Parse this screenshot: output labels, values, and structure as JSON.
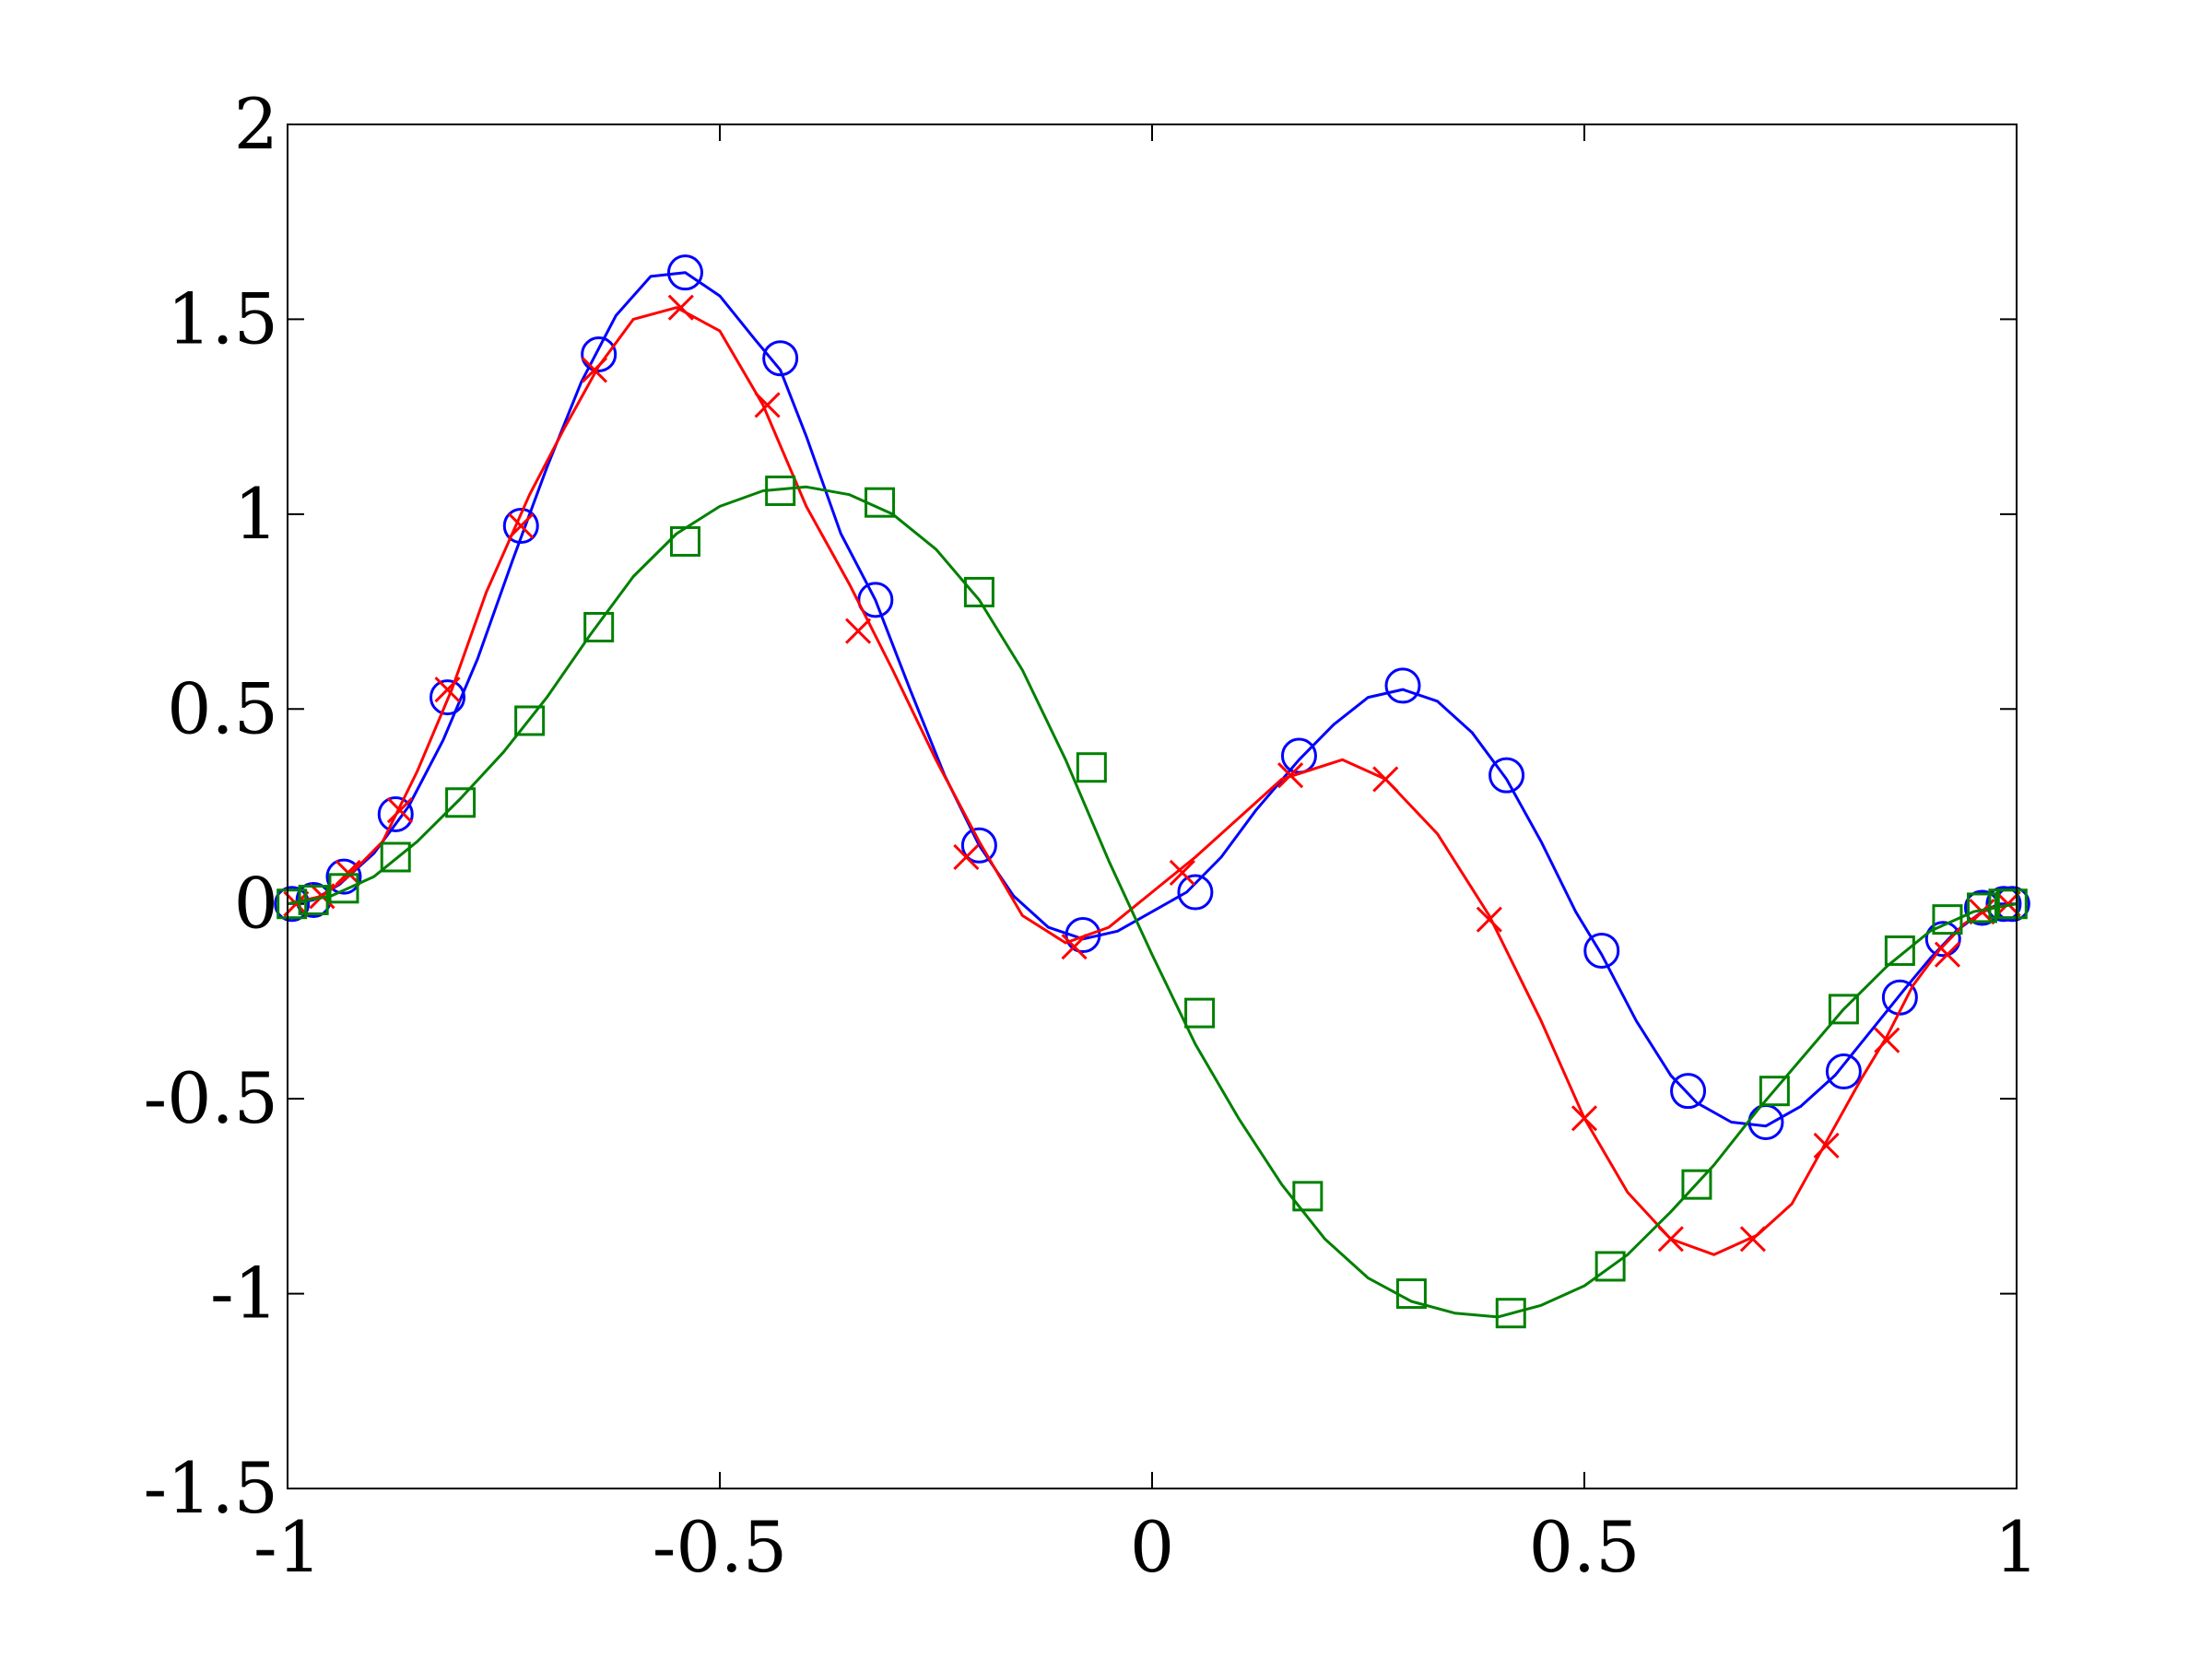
{
  "chart_data": {
    "type": "line",
    "title": "",
    "xlabel": "",
    "ylabel": "",
    "xlim": [
      -1,
      1
    ],
    "ylim": [
      -1.5,
      2
    ],
    "x_ticks": [
      {
        "v": -1,
        "label": "-1"
      },
      {
        "v": -0.5,
        "label": "-0.5"
      },
      {
        "v": 0,
        "label": "0"
      },
      {
        "v": 0.5,
        "label": "0.5"
      },
      {
        "v": 1,
        "label": "1"
      }
    ],
    "y_ticks": [
      {
        "v": -1.5,
        "label": "-1.5"
      },
      {
        "v": -1,
        "label": "-1"
      },
      {
        "v": -0.5,
        "label": "-0.5"
      },
      {
        "v": 0,
        "label": "0"
      },
      {
        "v": 0.5,
        "label": "0.5"
      },
      {
        "v": 1,
        "label": "1"
      },
      {
        "v": 1.5,
        "label": "1.5"
      },
      {
        "v": 2,
        "label": "2"
      }
    ],
    "grid": false,
    "legend": "none",
    "series": [
      {
        "id": "blue",
        "color": "#0000ff",
        "marker": "circle",
        "line": [
          [
            -1,
            0
          ],
          [
            -0.97,
            0.01
          ],
          [
            -0.94,
            0.05
          ],
          [
            -0.9,
            0.13
          ],
          [
            -0.86,
            0.25
          ],
          [
            -0.82,
            0.42
          ],
          [
            -0.78,
            0.63
          ],
          [
            -0.74,
            0.88
          ],
          [
            -0.7,
            1.12
          ],
          [
            -0.66,
            1.34
          ],
          [
            -0.62,
            1.51
          ],
          [
            -0.58,
            1.61
          ],
          [
            -0.54,
            1.62
          ],
          [
            -0.5,
            1.56
          ],
          [
            -0.46,
            1.45
          ],
          [
            -0.43,
            1.37
          ],
          [
            -0.4,
            1.2
          ],
          [
            -0.36,
            0.95
          ],
          [
            -0.32,
            0.78
          ],
          [
            -0.28,
            0.55
          ],
          [
            -0.24,
            0.33
          ],
          [
            -0.2,
            0.15
          ],
          [
            -0.16,
            0.02
          ],
          [
            -0.12,
            -0.06
          ],
          [
            -0.08,
            -0.09
          ],
          [
            -0.04,
            -0.07
          ],
          [
            0,
            -0.02
          ],
          [
            0.04,
            0.03
          ],
          [
            0.08,
            0.12
          ],
          [
            0.12,
            0.24
          ],
          [
            0.17,
            0.37
          ],
          [
            0.21,
            0.46
          ],
          [
            0.25,
            0.53
          ],
          [
            0.29,
            0.55
          ],
          [
            0.33,
            0.52
          ],
          [
            0.37,
            0.44
          ],
          [
            0.41,
            0.32
          ],
          [
            0.45,
            0.16
          ],
          [
            0.49,
            -0.02
          ],
          [
            0.52,
            -0.13
          ],
          [
            0.56,
            -0.3
          ],
          [
            0.6,
            -0.44
          ],
          [
            0.63,
            -0.51
          ],
          [
            0.67,
            -0.56
          ],
          [
            0.71,
            -0.57
          ],
          [
            0.75,
            -0.52
          ],
          [
            0.79,
            -0.44
          ],
          [
            0.83,
            -0.33
          ],
          [
            0.87,
            -0.22
          ],
          [
            0.9,
            -0.14
          ],
          [
            0.93,
            -0.07
          ],
          [
            0.96,
            -0.02
          ],
          [
            0.98,
            0
          ],
          [
            1,
            0
          ]
        ],
        "markers": [
          [
            -0.995,
            0
          ],
          [
            -0.97,
            0.01
          ],
          [
            -0.935,
            0.07
          ],
          [
            -0.875,
            0.23
          ],
          [
            -0.815,
            0.53
          ],
          [
            -0.73,
            0.97
          ],
          [
            -0.64,
            1.41
          ],
          [
            -0.54,
            1.62
          ],
          [
            -0.43,
            1.4
          ],
          [
            -0.32,
            0.78
          ],
          [
            -0.2,
            0.15
          ],
          [
            -0.08,
            -0.08
          ],
          [
            0.05,
            0.03
          ],
          [
            0.17,
            0.38
          ],
          [
            0.29,
            0.56
          ],
          [
            0.41,
            0.33
          ],
          [
            0.52,
            -0.12
          ],
          [
            0.62,
            -0.48
          ],
          [
            0.71,
            -0.56
          ],
          [
            0.8,
            -0.43
          ],
          [
            0.865,
            -0.24
          ],
          [
            0.915,
            -0.09
          ],
          [
            0.96,
            -0.01
          ],
          [
            0.985,
            0
          ],
          [
            0.995,
            0
          ]
        ]
      },
      {
        "id": "red",
        "color": "#ff0000",
        "marker": "x",
        "line": [
          [
            -1,
            0
          ],
          [
            -0.96,
            0.02
          ],
          [
            -0.93,
            0.07
          ],
          [
            -0.89,
            0.16
          ],
          [
            -0.85,
            0.34
          ],
          [
            -0.81,
            0.55
          ],
          [
            -0.77,
            0.8
          ],
          [
            -0.72,
            1.05
          ],
          [
            -0.68,
            1.22
          ],
          [
            -0.64,
            1.38
          ],
          [
            -0.6,
            1.5
          ],
          [
            -0.55,
            1.53
          ],
          [
            -0.5,
            1.47
          ],
          [
            -0.45,
            1.28
          ],
          [
            -0.4,
            1.02
          ],
          [
            -0.35,
            0.82
          ],
          [
            -0.3,
            0.6
          ],
          [
            -0.25,
            0.37
          ],
          [
            -0.2,
            0.16
          ],
          [
            -0.15,
            -0.03
          ],
          [
            -0.1,
            -0.1
          ],
          [
            -0.05,
            -0.06
          ],
          [
            0,
            0.03
          ],
          [
            0.05,
            0.12
          ],
          [
            0.1,
            0.22
          ],
          [
            0.15,
            0.32
          ],
          [
            0.22,
            0.37
          ],
          [
            0.27,
            0.32
          ],
          [
            0.33,
            0.18
          ],
          [
            0.39,
            -0.03
          ],
          [
            0.45,
            -0.3
          ],
          [
            0.5,
            -0.55
          ],
          [
            0.55,
            -0.74
          ],
          [
            0.6,
            -0.86
          ],
          [
            0.65,
            -0.9
          ],
          [
            0.7,
            -0.85
          ],
          [
            0.74,
            -0.77
          ],
          [
            0.78,
            -0.61
          ],
          [
            0.82,
            -0.45
          ],
          [
            0.85,
            -0.34
          ],
          [
            0.88,
            -0.21
          ],
          [
            0.91,
            -0.12
          ],
          [
            0.94,
            -0.05
          ],
          [
            0.97,
            -0.01
          ],
          [
            1,
            0
          ]
        ],
        "markers": [
          [
            -0.99,
            0
          ],
          [
            -0.96,
            0.02
          ],
          [
            -0.93,
            0.08
          ],
          [
            -0.87,
            0.24
          ],
          [
            -0.815,
            0.55
          ],
          [
            -0.73,
            0.97
          ],
          [
            -0.645,
            1.37
          ],
          [
            -0.545,
            1.53
          ],
          [
            -0.445,
            1.28
          ],
          [
            -0.34,
            0.7
          ],
          [
            -0.215,
            0.12
          ],
          [
            -0.09,
            -0.11
          ],
          [
            0.035,
            0.08
          ],
          [
            0.16,
            0.33
          ],
          [
            0.27,
            0.32
          ],
          [
            0.39,
            -0.04
          ],
          [
            0.5,
            -0.55
          ],
          [
            0.6,
            -0.86
          ],
          [
            0.695,
            -0.86
          ],
          [
            0.78,
            -0.62
          ],
          [
            0.85,
            -0.35
          ],
          [
            0.92,
            -0.13
          ],
          [
            0.96,
            -0.02
          ],
          [
            0.99,
            0
          ]
        ]
      },
      {
        "id": "green",
        "color": "#008000",
        "marker": "square",
        "line": [
          [
            -1,
            0
          ],
          [
            -0.95,
            0.02
          ],
          [
            -0.9,
            0.07
          ],
          [
            -0.85,
            0.16
          ],
          [
            -0.8,
            0.27
          ],
          [
            -0.75,
            0.39
          ],
          [
            -0.7,
            0.53
          ],
          [
            -0.65,
            0.69
          ],
          [
            -0.6,
            0.84
          ],
          [
            -0.55,
            0.95
          ],
          [
            -0.5,
            1.02
          ],
          [
            -0.45,
            1.06
          ],
          [
            -0.4,
            1.07
          ],
          [
            -0.35,
            1.05
          ],
          [
            -0.3,
            1.0
          ],
          [
            -0.25,
            0.91
          ],
          [
            -0.2,
            0.78
          ],
          [
            -0.15,
            0.6
          ],
          [
            -0.1,
            0.37
          ],
          [
            -0.05,
            0.11
          ],
          [
            0,
            -0.13
          ],
          [
            0.05,
            -0.36
          ],
          [
            0.1,
            -0.55
          ],
          [
            0.15,
            -0.72
          ],
          [
            0.2,
            -0.86
          ],
          [
            0.25,
            -0.96
          ],
          [
            0.3,
            -1.02
          ],
          [
            0.35,
            -1.05
          ],
          [
            0.4,
            -1.06
          ],
          [
            0.45,
            -1.03
          ],
          [
            0.5,
            -0.98
          ],
          [
            0.55,
            -0.9
          ],
          [
            0.6,
            -0.79
          ],
          [
            0.65,
            -0.67
          ],
          [
            0.7,
            -0.53
          ],
          [
            0.75,
            -0.4
          ],
          [
            0.8,
            -0.27
          ],
          [
            0.85,
            -0.16
          ],
          [
            0.9,
            -0.07
          ],
          [
            0.95,
            -0.02
          ],
          [
            1,
            0
          ]
        ],
        "markers": [
          [
            -0.995,
            0
          ],
          [
            -0.97,
            0.01
          ],
          [
            -0.935,
            0.04
          ],
          [
            -0.875,
            0.12
          ],
          [
            -0.8,
            0.26
          ],
          [
            -0.72,
            0.47
          ],
          [
            -0.64,
            0.71
          ],
          [
            -0.54,
            0.93
          ],
          [
            -0.43,
            1.06
          ],
          [
            -0.315,
            1.03
          ],
          [
            -0.2,
            0.8
          ],
          [
            -0.07,
            0.35
          ],
          [
            0.055,
            -0.28
          ],
          [
            0.18,
            -0.75
          ],
          [
            0.3,
            -1.0
          ],
          [
            0.415,
            -1.05
          ],
          [
            0.53,
            -0.93
          ],
          [
            0.63,
            -0.72
          ],
          [
            0.72,
            -0.48
          ],
          [
            0.8,
            -0.27
          ],
          [
            0.865,
            -0.12
          ],
          [
            0.92,
            -0.04
          ],
          [
            0.96,
            -0.01
          ],
          [
            0.985,
            0
          ],
          [
            0.995,
            0
          ]
        ]
      }
    ]
  }
}
